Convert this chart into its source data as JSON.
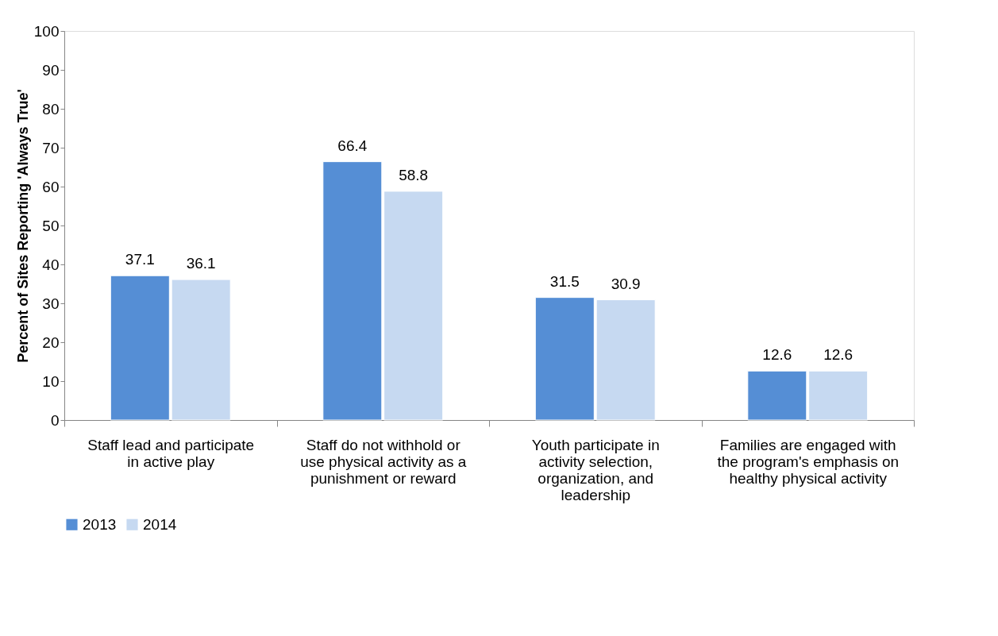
{
  "chart_data": {
    "type": "bar",
    "ylabel": "Percent of Sites Reporting 'Always True'",
    "categories": [
      "Staff lead and participate in active play",
      "Staff do not withhold or use physical activity as a punishment or reward",
      "Youth participate in activity selection, organization, and leadership",
      "Families are engaged with the program's emphasis on healthy physical activity"
    ],
    "series": [
      {
        "name": "2013",
        "color": "#558ed5",
        "values": [
          37.1,
          66.4,
          31.5,
          12.6
        ]
      },
      {
        "name": "2014",
        "color": "#c6d9f1",
        "values": [
          36.1,
          58.8,
          30.9,
          12.6
        ]
      }
    ],
    "ylim": [
      0,
      100
    ],
    "yticks": [
      0,
      10,
      20,
      30,
      40,
      50,
      60,
      70,
      80,
      90,
      100
    ],
    "grid": false,
    "legend": "bottom",
    "data_labels": true
  }
}
